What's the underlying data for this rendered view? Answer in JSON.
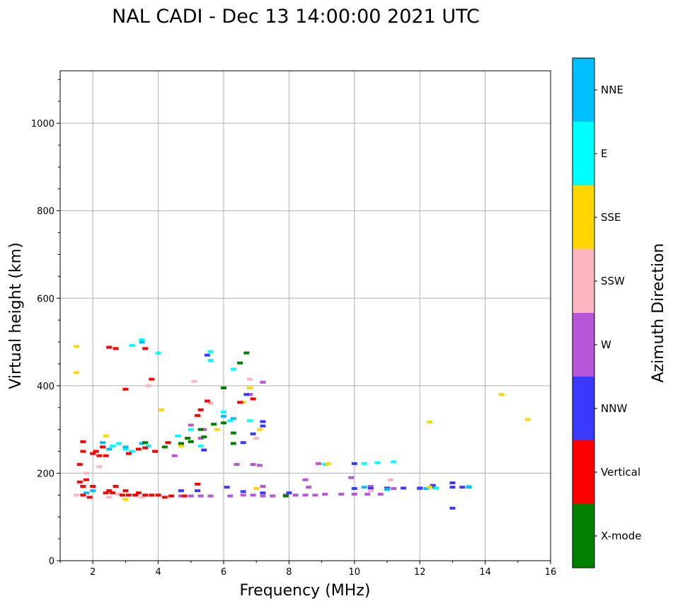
{
  "chart_data": {
    "type": "scatter",
    "title": "NAL CADI - Dec 13 14:00:00 2021 UTC",
    "xlabel": "Frequency (MHz)",
    "ylabel": "Virtual height (km)",
    "xlim": [
      1,
      16
    ],
    "ylim": [
      0,
      1120
    ],
    "xticks": [
      2,
      4,
      6,
      8,
      10,
      12,
      14,
      16
    ],
    "yticks": [
      0,
      200,
      400,
      600,
      800,
      1000
    ],
    "grid": true,
    "colorbar": {
      "label": "Azimuth Direction",
      "categories": [
        {
          "name": "X-mode",
          "color": "#008000"
        },
        {
          "name": "Vertical",
          "color": "#ff0000"
        },
        {
          "name": "NNW",
          "color": "#3a3aff"
        },
        {
          "name": "W",
          "color": "#b557d6"
        },
        {
          "name": "SSW",
          "color": "#ffb6c1"
        },
        {
          "name": "SSE",
          "color": "#ffd700"
        },
        {
          "name": "E",
          "color": "#00ffff"
        },
        {
          "name": "NNE",
          "color": "#00bfff"
        }
      ]
    },
    "series": [
      {
        "name": "W",
        "points": [
          [
            4.7,
            148
          ],
          [
            5.0,
            148
          ],
          [
            5.3,
            148
          ],
          [
            5.6,
            148
          ],
          [
            6.2,
            148
          ],
          [
            6.6,
            150
          ],
          [
            6.9,
            150
          ],
          [
            7.2,
            148
          ],
          [
            7.5,
            148
          ],
          [
            7.9,
            150
          ],
          [
            8.2,
            150
          ],
          [
            8.5,
            150
          ],
          [
            8.8,
            150
          ],
          [
            9.1,
            152
          ],
          [
            9.6,
            152
          ],
          [
            10.0,
            152
          ],
          [
            10.4,
            152
          ],
          [
            10.8,
            152
          ],
          [
            9.9,
            190
          ],
          [
            8.5,
            185
          ],
          [
            8.6,
            168
          ],
          [
            7.2,
            170
          ],
          [
            6.4,
            220
          ],
          [
            6.9,
            220
          ],
          [
            7.1,
            218
          ],
          [
            8.9,
            222
          ],
          [
            6.8,
            380
          ],
          [
            7.2,
            408
          ],
          [
            6.8,
            380
          ],
          [
            5.3,
            280
          ],
          [
            4.5,
            240
          ],
          [
            5.0,
            310
          ],
          [
            5.4,
            300
          ],
          [
            10.5,
            170
          ],
          [
            11.2,
            165
          ],
          [
            12.0,
            165
          ]
        ]
      },
      {
        "name": "NNW",
        "points": [
          [
            10.0,
            165
          ],
          [
            10.5,
            165
          ],
          [
            11.0,
            166
          ],
          [
            11.5,
            166
          ],
          [
            12.0,
            166
          ],
          [
            12.4,
            168
          ],
          [
            13.0,
            168
          ],
          [
            13.0,
            178
          ],
          [
            13.3,
            168
          ],
          [
            12.4,
            172
          ],
          [
            10.0,
            222
          ],
          [
            6.6,
            270
          ],
          [
            6.9,
            290
          ],
          [
            6.7,
            380
          ],
          [
            7.2,
            318
          ],
          [
            7.2,
            308
          ],
          [
            5.4,
            253
          ],
          [
            5.5,
            470
          ],
          [
            4.7,
            160
          ],
          [
            5.2,
            160
          ],
          [
            6.1,
            168
          ],
          [
            6.6,
            158
          ],
          [
            7.2,
            155
          ],
          [
            8.0,
            155
          ],
          [
            13.0,
            120
          ]
        ]
      },
      {
        "name": "E",
        "points": [
          [
            10.7,
            224
          ],
          [
            11.2,
            226
          ],
          [
            10.3,
            222
          ],
          [
            9.1,
            220
          ],
          [
            6.8,
            320
          ],
          [
            5.6,
            478
          ],
          [
            6.3,
            438
          ],
          [
            5.6,
            458
          ],
          [
            3.5,
            505
          ],
          [
            3.2,
            492
          ],
          [
            4.0,
            475
          ],
          [
            3.7,
            262
          ],
          [
            3.2,
            250
          ],
          [
            4.6,
            285
          ],
          [
            5.0,
            300
          ],
          [
            5.3,
            262
          ],
          [
            2.6,
            262
          ],
          [
            2.8,
            268
          ],
          [
            3.0,
            255
          ],
          [
            6.0,
            340
          ],
          [
            6.2,
            320
          ],
          [
            13.5,
            170
          ],
          [
            12.5,
            166
          ],
          [
            10.5,
            160
          ]
        ]
      },
      {
        "name": "NNE",
        "points": [
          [
            10.3,
            168
          ],
          [
            11.0,
            163
          ],
          [
            12.2,
            165
          ],
          [
            13.5,
            168
          ],
          [
            3.5,
            500
          ],
          [
            3.0,
            260
          ],
          [
            3.5,
            268
          ],
          [
            2.3,
            270
          ],
          [
            2.5,
            255
          ],
          [
            1.8,
            155
          ],
          [
            2.0,
            160
          ],
          [
            6.0,
            330
          ],
          [
            6.3,
            325
          ]
        ]
      },
      {
        "name": "SSE",
        "points": [
          [
            14.5,
            380
          ],
          [
            15.3,
            323
          ],
          [
            12.3,
            317
          ],
          [
            6.8,
            395
          ],
          [
            6.6,
            362
          ],
          [
            5.8,
            300
          ],
          [
            7.1,
            300
          ],
          [
            4.1,
            345
          ],
          [
            4.7,
            262
          ],
          [
            9.2,
            222
          ],
          [
            2.4,
            285
          ],
          [
            1.5,
            490
          ],
          [
            1.5,
            430
          ],
          [
            12.3,
            168
          ],
          [
            7.0,
            165
          ],
          [
            3.0,
            140
          ]
        ]
      },
      {
        "name": "SSW",
        "points": [
          [
            11.1,
            185
          ],
          [
            10.5,
            160
          ],
          [
            4.0,
            150
          ],
          [
            3.3,
            150
          ],
          [
            3.5,
            145
          ],
          [
            2.5,
            145
          ],
          [
            2.8,
            152
          ],
          [
            7.0,
            280
          ],
          [
            6.8,
            415
          ],
          [
            5.1,
            410
          ],
          [
            5.6,
            360
          ],
          [
            3.7,
            400
          ],
          [
            2.2,
            215
          ],
          [
            1.8,
            200
          ],
          [
            1.5,
            150
          ]
        ]
      },
      {
        "name": "X-mode",
        "points": [
          [
            7.9,
            148
          ],
          [
            5.4,
            283
          ],
          [
            5.3,
            300
          ],
          [
            5.0,
            272
          ],
          [
            4.7,
            268
          ],
          [
            4.9,
            280
          ],
          [
            5.7,
            312
          ],
          [
            6.0,
            315
          ],
          [
            6.3,
            292
          ],
          [
            6.3,
            268
          ],
          [
            6.7,
            475
          ],
          [
            6.5,
            452
          ],
          [
            3.6,
            270
          ],
          [
            4.2,
            260
          ],
          [
            6.0,
            395
          ]
        ]
      },
      {
        "name": "Vertical",
        "points": [
          [
            1.6,
            220
          ],
          [
            1.6,
            180
          ],
          [
            1.7,
            170
          ],
          [
            1.7,
            150
          ],
          [
            1.8,
            185
          ],
          [
            1.9,
            145
          ],
          [
            2.0,
            170
          ],
          [
            2.1,
            250
          ],
          [
            2.2,
            240
          ],
          [
            2.3,
            260
          ],
          [
            2.4,
            155
          ],
          [
            2.5,
            160
          ],
          [
            2.6,
            155
          ],
          [
            2.7,
            170
          ],
          [
            2.9,
            150
          ],
          [
            3.0,
            160
          ],
          [
            3.1,
            150
          ],
          [
            3.3,
            150
          ],
          [
            3.4,
            155
          ],
          [
            3.6,
            150
          ],
          [
            3.8,
            150
          ],
          [
            4.0,
            150
          ],
          [
            4.2,
            145
          ],
          [
            4.4,
            148
          ],
          [
            4.8,
            148
          ],
          [
            5.2,
            175
          ],
          [
            3.1,
            245
          ],
          [
            3.4,
            255
          ],
          [
            3.6,
            258
          ],
          [
            3.9,
            250
          ],
          [
            4.3,
            270
          ],
          [
            5.5,
            365
          ],
          [
            3.6,
            485
          ],
          [
            2.5,
            488
          ],
          [
            2.7,
            485
          ],
          [
            3.8,
            415
          ],
          [
            5.3,
            345
          ],
          [
            6.9,
            370
          ],
          [
            3.0,
            392
          ],
          [
            1.7,
            250
          ],
          [
            1.7,
            272
          ],
          [
            2.0,
            245
          ],
          [
            2.4,
            240
          ],
          [
            5.2,
            332
          ],
          [
            6.5,
            362
          ]
        ]
      }
    ]
  }
}
